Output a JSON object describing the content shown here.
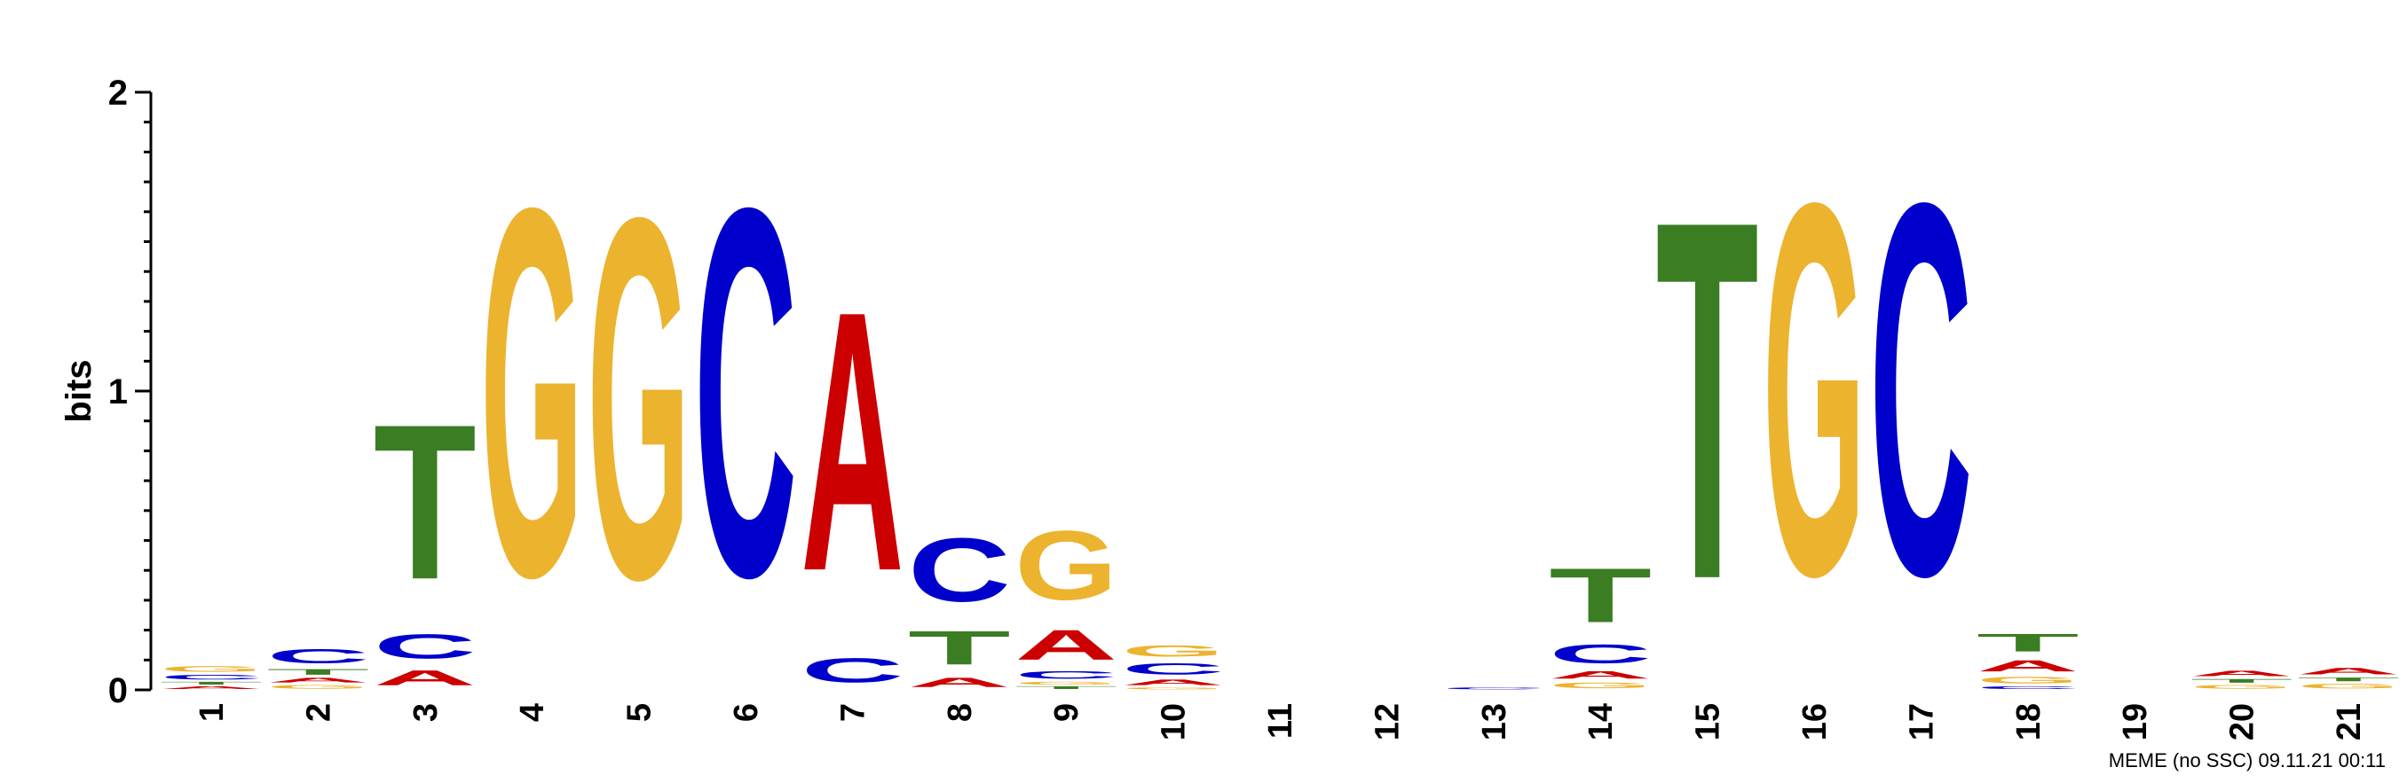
{
  "chart_data": {
    "type": "sequence-logo",
    "ylabel": "bits",
    "ylim": [
      0,
      2
    ],
    "yticks": [
      "0",
      "1",
      "2"
    ],
    "colors": {
      "A": "#cc0000",
      "C": "#0000cc",
      "G": "#ecb32f",
      "T": "#3a7d22"
    },
    "positions": [
      {
        "label": "1",
        "letters": [
          {
            "base": "A",
            "bits": 0.015
          },
          {
            "base": "T",
            "bits": 0.015
          },
          {
            "base": "C",
            "bits": 0.025
          },
          {
            "base": "G",
            "bits": 0.03
          }
        ]
      },
      {
        "label": "2",
        "letters": [
          {
            "base": "G",
            "bits": 0.02
          },
          {
            "base": "A",
            "bits": 0.025
          },
          {
            "base": "T",
            "bits": 0.03
          },
          {
            "base": "C",
            "bits": 0.075
          }
        ]
      },
      {
        "label": "3",
        "letters": [
          {
            "base": "A",
            "bits": 0.08
          },
          {
            "base": "C",
            "bits": 0.13
          },
          {
            "base": "T",
            "bits": 0.83
          }
        ]
      },
      {
        "label": "4",
        "letters": [
          {
            "base": "G",
            "bits": 1.97
          }
        ]
      },
      {
        "label": "5",
        "letters": [
          {
            "base": "G",
            "bits": 1.93
          }
        ]
      },
      {
        "label": "6",
        "letters": [
          {
            "base": "C",
            "bits": 1.97
          }
        ]
      },
      {
        "label": "7",
        "letters": [
          {
            "base": "C",
            "bits": 0.13
          },
          {
            "base": "A",
            "bits": 1.39
          }
        ]
      },
      {
        "label": "8",
        "letters": [
          {
            "base": "A",
            "bits": 0.05
          },
          {
            "base": "T",
            "bits": 0.18
          },
          {
            "base": "C",
            "bits": 0.34
          }
        ]
      },
      {
        "label": "9",
        "letters": [
          {
            "base": "T",
            "bits": 0.015
          },
          {
            "base": "G",
            "bits": 0.015
          },
          {
            "base": "C",
            "bits": 0.04
          },
          {
            "base": "A",
            "bits": 0.16
          },
          {
            "base": "G",
            "bits": 0.37
          }
        ]
      },
      {
        "label": "10",
        "letters": [
          {
            "base": "G",
            "bits": 0.01
          },
          {
            "base": "A",
            "bits": 0.03
          },
          {
            "base": "C",
            "bits": 0.06
          },
          {
            "base": "G",
            "bits": 0.06
          }
        ]
      },
      {
        "label": "11",
        "letters": []
      },
      {
        "label": "12",
        "letters": []
      },
      {
        "label": "13",
        "letters": [
          {
            "base": "C",
            "bits": 0.01
          }
        ]
      },
      {
        "label": "14",
        "letters": [
          {
            "base": "G",
            "bits": 0.03
          },
          {
            "base": "A",
            "bits": 0.04
          },
          {
            "base": "C",
            "bits": 0.1
          },
          {
            "base": "T",
            "bits": 0.29
          }
        ]
      },
      {
        "label": "15",
        "letters": [
          {
            "base": "T",
            "bits": 1.92
          }
        ]
      },
      {
        "label": "16",
        "letters": [
          {
            "base": "G",
            "bits": 1.99
          }
        ]
      },
      {
        "label": "17",
        "letters": [
          {
            "base": "C",
            "bits": 1.99
          }
        ]
      },
      {
        "label": "18",
        "letters": [
          {
            "base": "C",
            "bits": 0.015
          },
          {
            "base": "G",
            "bits": 0.035
          },
          {
            "base": "A",
            "bits": 0.06
          },
          {
            "base": "T",
            "bits": 0.095
          }
        ]
      },
      {
        "label": "19",
        "letters": []
      },
      {
        "label": "20",
        "letters": [
          {
            "base": "G",
            "bits": 0.02
          },
          {
            "base": "T",
            "bits": 0.02
          },
          {
            "base": "A",
            "bits": 0.03
          }
        ]
      },
      {
        "label": "21",
        "letters": [
          {
            "base": "G",
            "bits": 0.025
          },
          {
            "base": "T",
            "bits": 0.02
          },
          {
            "base": "A",
            "bits": 0.035
          }
        ]
      }
    ]
  },
  "footer": {
    "text": "MEME (no SSC) 09.11.21 00:11"
  }
}
